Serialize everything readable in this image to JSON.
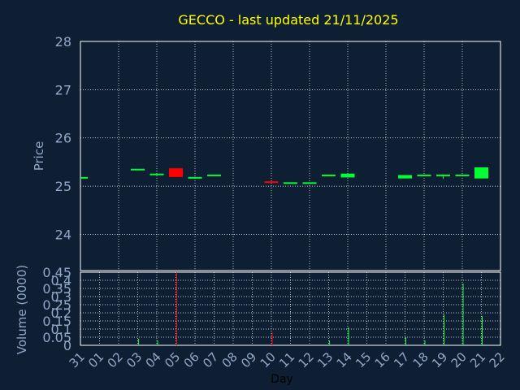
{
  "title": "GECCO - last updated 21/11/2025",
  "colors": {
    "background": "#0f1f33",
    "plot_background": "#0f1f33",
    "frame": "#ffffff",
    "grid": "#ffffff",
    "title": "#ffff00",
    "axis_text": "#8fa7c8",
    "up": "#00ff33",
    "down": "#ff0000"
  },
  "chart_data": [
    {
      "type": "candlestick",
      "ylabel": "Price",
      "ylim": [
        23.25,
        28
      ],
      "yticks": [
        24,
        25,
        26,
        27,
        28
      ],
      "grid": true,
      "x_slots": [
        "31",
        "01",
        "02",
        "03",
        "04",
        "05",
        "06",
        "07",
        "08",
        "09",
        "10",
        "11",
        "12",
        "13",
        "14",
        "15",
        "16",
        "17",
        "18",
        "19",
        "20",
        "21",
        "22"
      ],
      "candles": [
        {
          "x": "31",
          "open": 25.19,
          "close": 25.19,
          "high": 25.19,
          "low": 25.19,
          "dir": "up"
        },
        {
          "x": "03",
          "open": 25.36,
          "close": 25.36,
          "high": 25.36,
          "low": 25.36,
          "dir": "up"
        },
        {
          "x": "04",
          "open": 25.26,
          "close": 25.26,
          "high": 25.26,
          "low": 25.26,
          "dir": "up"
        },
        {
          "x": "05",
          "open": 25.37,
          "close": 25.19,
          "high": 25.37,
          "low": 25.19,
          "dir": "down"
        },
        {
          "x": "06",
          "open": 25.19,
          "close": 25.19,
          "high": 25.19,
          "low": 25.19,
          "dir": "up"
        },
        {
          "x": "07",
          "open": 25.24,
          "close": 25.24,
          "high": 25.24,
          "low": 25.24,
          "dir": "up"
        },
        {
          "x": "10",
          "open": 25.1,
          "close": 25.1,
          "high": 25.1,
          "low": 25.1,
          "dir": "down"
        },
        {
          "x": "11",
          "open": 25.08,
          "close": 25.08,
          "high": 25.08,
          "low": 25.08,
          "dir": "up"
        },
        {
          "x": "12",
          "open": 25.08,
          "close": 25.08,
          "high": 25.08,
          "low": 25.08,
          "dir": "up"
        },
        {
          "x": "13",
          "open": 25.24,
          "close": 25.24,
          "high": 25.24,
          "low": 25.24,
          "dir": "up"
        },
        {
          "x": "14",
          "open": 25.18,
          "close": 25.26,
          "high": 25.26,
          "low": 25.18,
          "dir": "up"
        },
        {
          "x": "17",
          "open": 25.16,
          "close": 25.23,
          "high": 25.23,
          "low": 25.16,
          "dir": "up"
        },
        {
          "x": "18",
          "open": 25.24,
          "close": 25.24,
          "high": 25.24,
          "low": 25.24,
          "dir": "up"
        },
        {
          "x": "19",
          "open": 25.24,
          "close": 25.24,
          "high": 25.24,
          "low": 25.15,
          "dir": "up"
        },
        {
          "x": "20",
          "open": 25.24,
          "close": 25.24,
          "high": 25.24,
          "low": 25.24,
          "dir": "up"
        },
        {
          "x": "21",
          "open": 25.16,
          "close": 25.39,
          "high": 25.39,
          "low": 25.16,
          "dir": "up"
        }
      ]
    },
    {
      "type": "bar",
      "ylabel": "Volume (0000)",
      "xlabel": "Day",
      "ylim": [
        0,
        0.45
      ],
      "yticks": [
        "0",
        "0.05",
        "0.1",
        "0.15",
        "0.2",
        "0.25",
        "0.3",
        "0.35",
        "0.4",
        "0.45"
      ],
      "grid": true,
      "categories": [
        "31",
        "01",
        "02",
        "03",
        "04",
        "05",
        "06",
        "07",
        "08",
        "09",
        "10",
        "11",
        "12",
        "13",
        "14",
        "15",
        "16",
        "17",
        "18",
        "19",
        "20",
        "21",
        "22"
      ],
      "values": [
        0,
        0,
        0,
        0.04,
        0.03,
        0.45,
        0,
        0,
        0,
        0,
        0.08,
        0,
        0,
        0.03,
        0.11,
        0,
        0,
        0.05,
        0.03,
        0.19,
        0.38,
        0.18,
        0
      ],
      "dirs": [
        "up",
        "up",
        "up",
        "up",
        "up",
        "down",
        "up",
        "up",
        "up",
        "up",
        "down",
        "up",
        "up",
        "up",
        "up",
        "up",
        "up",
        "up",
        "up",
        "up",
        "up",
        "up",
        "up"
      ]
    }
  ]
}
